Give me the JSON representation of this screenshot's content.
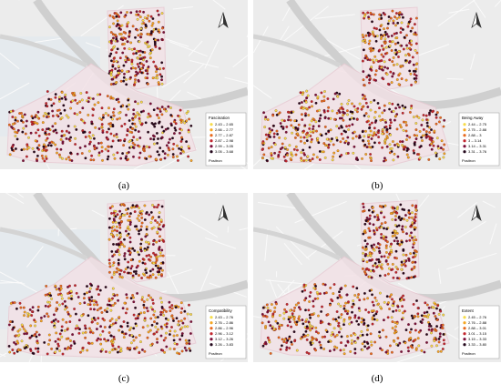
{
  "colors": [
    "#f6dc4a",
    "#f5a623",
    "#e86a1e",
    "#c2262e",
    "#7a0f3a",
    "#24081c"
  ],
  "panels": [
    {
      "label": "(a)",
      "legend_title": "Fascination",
      "legend_items": [
        "2.43 – 2.65",
        "2.66 – 2.77",
        "2.77 – 2.87",
        "2.87 – 2.98",
        "2.99 – 3.05",
        "3.05 – 3.68"
      ],
      "basemap": "Positron"
    },
    {
      "label": "(b)",
      "legend_title": "Being Away",
      "legend_items": [
        "2.44 – 2.75",
        "2.75 – 2.88",
        "2.88 – 3",
        "3 – 3.14",
        "3.14 – 3.31",
        "3.31 – 3.76"
      ],
      "basemap": "Positron"
    },
    {
      "label": "(c)",
      "legend_title": "Compatibility",
      "legend_items": [
        "2.43 – 2.76",
        "2.76 – 2.86",
        "2.86 – 2.96",
        "2.96 – 3.12",
        "3.12 – 3.26",
        "3.26 – 3.83"
      ],
      "basemap": "Positron"
    },
    {
      "label": "(d)",
      "legend_title": "Extent",
      "legend_items": [
        "2.45 – 2.76",
        "2.76 – 2.88",
        "2.88 – 3.01",
        "3.01 – 3.15",
        "3.15 – 3.33",
        "3.33 – 3.80"
      ],
      "basemap": "Positron"
    }
  ]
}
